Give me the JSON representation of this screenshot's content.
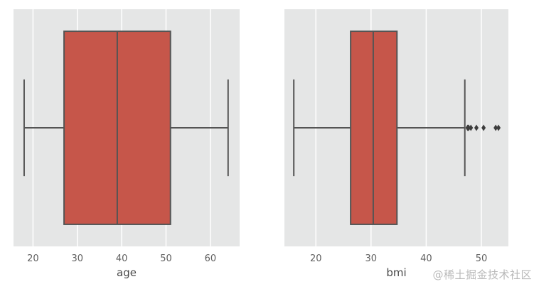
{
  "figure": {
    "watermark": "@稀土掘金技术社区"
  },
  "colors": {
    "page_bg": "#ffffff",
    "panel_bg": "#e5e6e6",
    "grid": "#ffffff",
    "box_fill": "#c6564a",
    "box_edge": "#545454",
    "outlier": "#3d3d3d",
    "tick_text": "#5f5f5f",
    "label_text": "#484848",
    "watermark_text": "#b9b9b9"
  },
  "chart_data": [
    {
      "type": "box",
      "orientation": "horizontal",
      "xlabel": "age",
      "xticks": [
        20,
        30,
        40,
        50,
        60
      ],
      "xlim": [
        15.6,
        66.6
      ],
      "grid": "vertical white gridlines at xticks",
      "legend": "none",
      "stats": {
        "whisker_low": 18,
        "q1": 27,
        "median": 39,
        "q3": 51,
        "whisker_high": 64,
        "outliers": []
      }
    },
    {
      "type": "box",
      "orientation": "horizontal",
      "xlabel": "bmi",
      "xticks": [
        20,
        30,
        40,
        50
      ],
      "xlim": [
        14.3,
        54.9
      ],
      "grid": "vertical white gridlines at xticks",
      "legend": "none",
      "stats": {
        "whisker_low": 16,
        "q1": 26.3,
        "median": 30.4,
        "q3": 34.7,
        "whisker_high": 47,
        "outliers": [
          47.5,
          47.6,
          47.7,
          48.1,
          49.1,
          50.4,
          52.6,
          53.1
        ]
      }
    }
  ]
}
